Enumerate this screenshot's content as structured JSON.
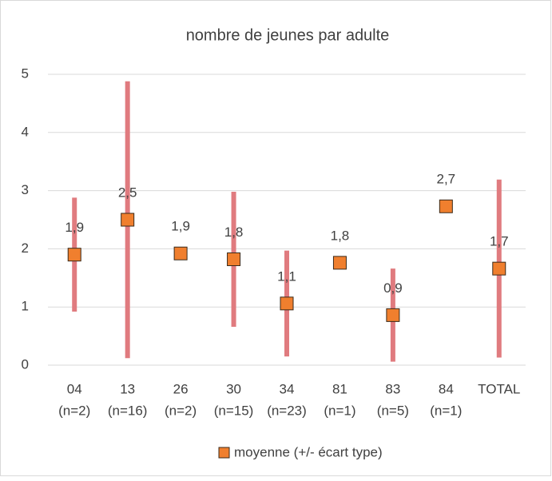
{
  "chart_data": {
    "type": "errorbar",
    "title": "nombre de jeunes par adulte",
    "categories": [
      "04",
      "13",
      "26",
      "30",
      "34",
      "81",
      "83",
      "84",
      "TOTAL"
    ],
    "sublabels": [
      "(n=2)",
      "(n=16)",
      "(n=2)",
      "(n=15)",
      "(n=23)",
      "(n=1)",
      "(n=5)",
      "(n=1)",
      null
    ],
    "series": [
      {
        "name": "moyenne (+/- écart type)",
        "color": "#f07f2e",
        "error_color": "#e07b7f",
        "values": [
          1.9,
          2.5,
          1.92,
          1.82,
          1.06,
          1.76,
          0.86,
          2.73,
          1.66
        ],
        "value_labels": [
          "1,9",
          "2,5",
          "1,9",
          "1,8",
          "1,1",
          "1,8",
          "0,9",
          "2,7",
          "1,7"
        ],
        "errors": [
          0.98,
          2.38,
          null,
          1.16,
          0.91,
          null,
          0.8,
          null,
          1.53
        ]
      }
    ],
    "ylim": [
      0,
      5
    ],
    "yticks": [
      0,
      1,
      2,
      3,
      4,
      5
    ],
    "grid": true,
    "legend": "bottom"
  }
}
